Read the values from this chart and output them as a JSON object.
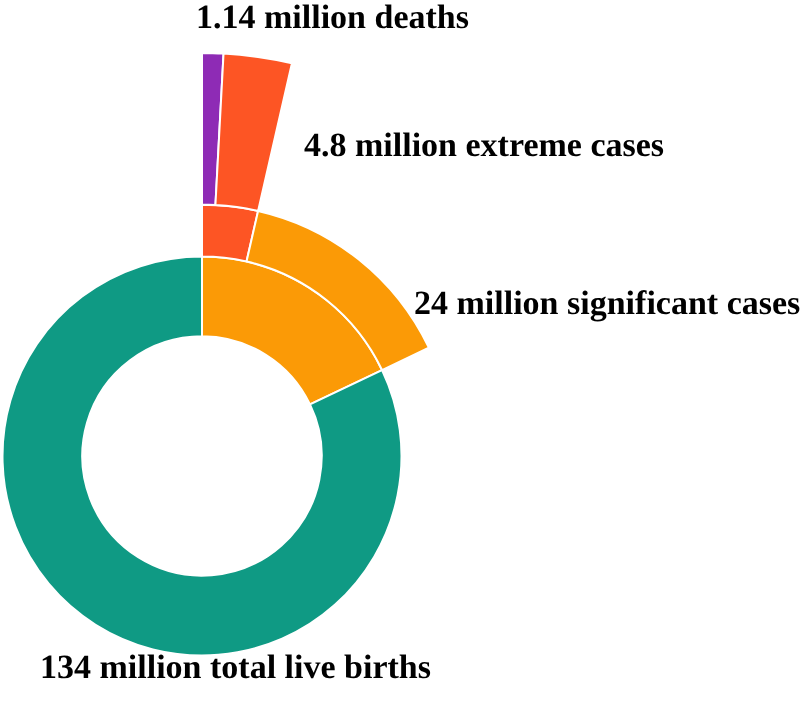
{
  "chart_data": {
    "type": "other",
    "categories": [
      "total live births",
      "significant cases",
      "extreme cases",
      "deaths"
    ],
    "values": [
      134,
      24,
      4.8,
      1.14
    ],
    "value_labels": [
      "134 million",
      "24 million",
      "4.8 million",
      "1.14 million"
    ],
    "colors": [
      "#0f9a84",
      "#fb9a06",
      "#fd5524",
      "#8e2bb5"
    ]
  }
}
